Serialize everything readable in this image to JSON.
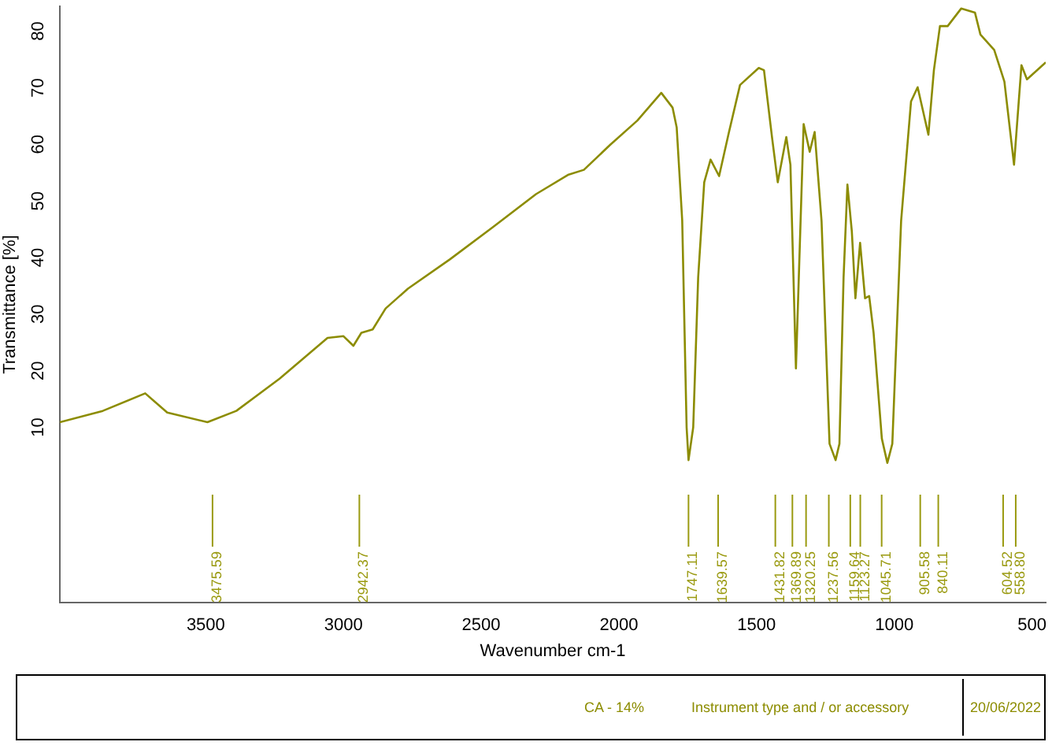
{
  "chart_data": {
    "type": "line",
    "xlabel": "Wavenumber cm-1",
    "ylabel": "Transmittance [%]",
    "xlim": [
      4030,
      450
    ],
    "xticks": [
      3500,
      3000,
      2500,
      2000,
      1500,
      1000,
      500
    ],
    "ylim": [
      -21,
      84.4
    ],
    "yticks": [
      10,
      20,
      30,
      40,
      50,
      60,
      70,
      80
    ],
    "grid": false,
    "legend": false,
    "marker": "none",
    "line_style": "solid",
    "series": [
      {
        "color": "#8c8c00",
        "x": [
          4030,
          3874,
          3720,
          3640,
          3494,
          3389,
          3232,
          3058,
          3000,
          2964,
          2935,
          2894,
          2847,
          2766,
          2613,
          2457,
          2301,
          2185,
          2127,
          2032,
          1933,
          1846,
          1805,
          1790,
          1770,
          1754,
          1747,
          1730,
          1712,
          1690,
          1667,
          1636,
          1601,
          1560,
          1492,
          1473,
          1444,
          1423,
          1392,
          1377,
          1357,
          1329,
          1307,
          1289,
          1264,
          1235,
          1213,
          1199,
          1184,
          1170,
          1154,
          1141,
          1124,
          1106,
          1091,
          1075,
          1045,
          1025,
          1007,
          975,
          939,
          915,
          876,
          856,
          834,
          806,
          757,
          707,
          687,
          637,
          600,
          565,
          538,
          518,
          450
        ],
        "values": [
          10.9,
          12.9,
          16.0,
          12.6,
          10.9,
          12.9,
          18.6,
          25.8,
          26.1,
          24.4,
          26.7,
          27.3,
          31.0,
          34.5,
          39.7,
          45.4,
          51.2,
          54.6,
          55.5,
          59.9,
          64.2,
          69.1,
          66.5,
          63,
          46.6,
          10,
          4.2,
          10,
          36.5,
          53.3,
          57.3,
          54.4,
          62,
          70.5,
          73.5,
          73.1,
          61.3,
          53.3,
          61.3,
          56.4,
          20.4,
          63.6,
          58.7,
          62.2,
          46.5,
          7.1,
          4.2,
          7.1,
          36.5,
          52.9,
          44.6,
          32.8,
          42.6,
          32.8,
          33.2,
          26.7,
          8.0,
          3.7,
          7.1,
          46.5,
          67.6,
          70.1,
          61.7,
          73.1,
          80.9,
          80.9,
          84,
          83.3,
          79.4,
          76.7,
          71.1,
          56.4,
          74,
          71.5,
          74.5
        ]
      }
    ],
    "ref_lines": [
      {
        "axis": "x",
        "value": 3475.59,
        "label": "3475.59"
      },
      {
        "axis": "x",
        "value": 2942.37,
        "label": "2942.37"
      },
      {
        "axis": "x",
        "value": 1747.11,
        "label": "1747.11"
      },
      {
        "axis": "x",
        "value": 1639.57,
        "label": "1639.57"
      },
      {
        "axis": "x",
        "value": 1431.82,
        "label": "1431.82"
      },
      {
        "axis": "x",
        "value": 1369.89,
        "label": "1369.89"
      },
      {
        "axis": "x",
        "value": 1320.25,
        "label": "1320.25"
      },
      {
        "axis": "x",
        "value": 1237.56,
        "label": "1237.56"
      },
      {
        "axis": "x",
        "value": 1159.64,
        "label": "1159.64"
      },
      {
        "axis": "x",
        "value": 1123.27,
        "label": "1123.27"
      },
      {
        "axis": "x",
        "value": 1045.71,
        "label": "1045.71"
      },
      {
        "axis": "x",
        "value": 905.58,
        "label": "905.58"
      },
      {
        "axis": "x",
        "value": 840.11,
        "label": "840.11"
      },
      {
        "axis": "x",
        "value": 604.52,
        "label": "604.52"
      },
      {
        "axis": "x",
        "value": 558.8,
        "label": "558.80"
      }
    ],
    "annotations": [
      "CA - 14%",
      "Instrument type and / or accessory",
      "20/06/2022"
    ]
  }
}
